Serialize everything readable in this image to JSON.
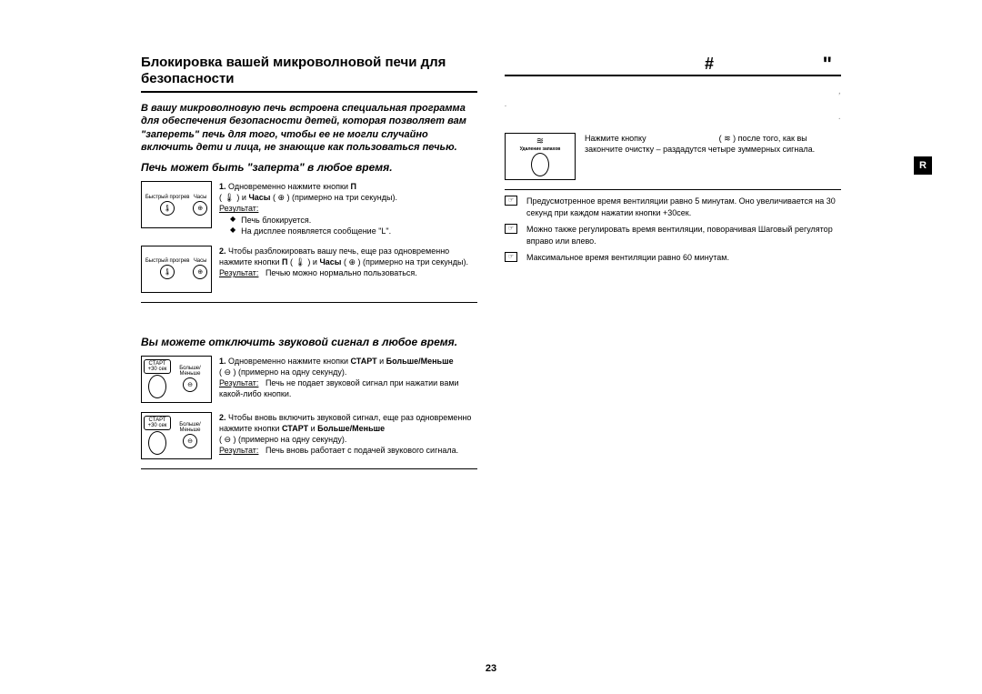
{
  "page_number": "23",
  "language_badge": "R",
  "left": {
    "heading": "Блокировка вашей микроволновой печи для безопасности",
    "intro": "В вашу микроволновую печь встроена специальная программа для обеспечения безопасности детей, которая позволяет вам \"запереть\" печь для того, чтобы ее не могли случайно включить дети и лица, не знающие как пользоваться печью.",
    "subhead1": "Печь может быть \"заперта\" в любое время.",
    "step1_num": "1.",
    "step1_text_a": "Одновременно нажмите кнопки",
    "step1_text_b": "П",
    "step1_text_c": "( 🌡 ) и ",
    "step1_bold_chasy": "Часы",
    "step1_text_d": " ( ⊕ ) (примерно на три секунды).",
    "result_label": "Результат:",
    "step1_res1": "Печь блокируется.",
    "step1_res2": "На дисплее появляется сообщение \"L\".",
    "step2_num": "2.",
    "step2_text_a": "Чтобы разблокировать вашу печь, еще раз одновременно нажмите кнопки",
    "step2_text_b": "П",
    "step2_text_c": "( 🌡 ) и ",
    "step2_text_d": " ( ⊕ ) (примерно на три секунды).",
    "step2_res": "Печью можно нормально пользоваться.",
    "sound_head": "Вы можете отключить звуковой сигнал в любое время.",
    "s_step1_num": "1.",
    "s_step1_a": "Одновременно нажмите кнопки ",
    "s_step1_bold1": "СТАРТ",
    "s_step1_mid": " и ",
    "s_step1_bold2": "Больше/Меньше",
    "s_step1_b": "( ⊖ ) (примерно на одну секунду).",
    "s_step1_res": "Печь не подает звуковой сигнал при нажатии вами какой-либо кнопки.",
    "s_step2_num": "2.",
    "s_step2_a": "Чтобы вновь включить звуковой сигнал, еще раз одновременно нажмите кнопки ",
    "s_step2_b": "( ⊖ ) (примерно на одну секунду).",
    "s_step2_res": "Печь вновь работает с подачей звукового сигнала.",
    "icon_labels": {
      "quick": "Быстрый прогрев",
      "clock": "Часы",
      "start": "СТАРТ",
      "start_sub": "+30 сек",
      "moreless": "Больше/Меньше",
      "odor": "Удаление запахов"
    },
    "hash": "#",
    "quote": "\""
  },
  "right": {
    "heading": " ",
    "intro_line1": " ",
    "intro_line2": ",",
    "intro_line3": ".",
    "intro_line4": ".",
    "intro_line5": ".",
    "step1_a": "Нажмите кнопку",
    "step1_b": "( ≋ ) после того, как вы закончите очистку – раздадутся четыре зуммерных сигнала.",
    "note1": "Предусмотренное время вентиляции равно 5 минутам. Оно увеличивается на 30 секунд при каждом нажатии кнопки +30сек.",
    "note2": "Можно также регулировать время вентиляции, поворачивая Шаговый регулятор вправо или влево.",
    "note3": "Максимальное время вентиляции равно 60 минутам."
  }
}
